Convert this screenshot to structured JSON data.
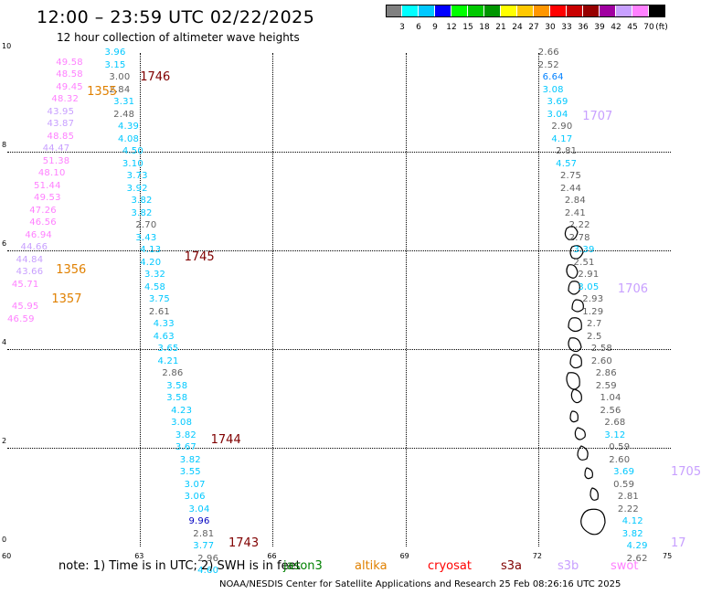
{
  "header": {
    "title": "12:00 – 23:59 UTC 02/22/2025",
    "subtitle": "12 hour collection of altimeter wave heights"
  },
  "colorbar": {
    "unit": "(ft)",
    "colors": [
      "#808080",
      "#00ffff",
      "#00c8ff",
      "#0000ff",
      "#00ff00",
      "#00c800",
      "#009600",
      "#ffff00",
      "#ffc800",
      "#ff9600",
      "#ff0000",
      "#c80000",
      "#960000",
      "#a000a0",
      "#c8a0ff",
      "#ff80ff",
      "#000000"
    ],
    "labels": [
      "3",
      "6",
      "9",
      "12",
      "15",
      "18",
      "21",
      "24",
      "27",
      "30",
      "33",
      "36",
      "39",
      "42",
      "45",
      "70"
    ]
  },
  "axes": {
    "x_ticks": [
      "60",
      "63",
      "66",
      "69",
      "72",
      "75"
    ],
    "y_ticks": [
      "0",
      "2",
      "4",
      "6",
      "8",
      "10"
    ]
  },
  "chart_data": {
    "type": "scatter",
    "xlim": [
      60,
      75
    ],
    "ylim": [
      0,
      10
    ],
    "grid": true,
    "passes": [
      {
        "label": "1746",
        "color": "#800000",
        "x": 63.0,
        "y": 9.5
      },
      {
        "label": "1355",
        "color": "#e08000",
        "x": 61.8,
        "y": 9.2
      },
      {
        "label": "1745",
        "color": "#800000",
        "x": 64.0,
        "y": 5.85
      },
      {
        "label": "1356",
        "color": "#e08000",
        "x": 61.1,
        "y": 5.6
      },
      {
        "label": "1357",
        "color": "#e08000",
        "x": 61.0,
        "y": 5.0
      },
      {
        "label": "1744",
        "color": "#800000",
        "x": 64.6,
        "y": 2.15
      },
      {
        "label": "1743",
        "color": "#800000",
        "x": 65.0,
        "y": 0.05
      },
      {
        "label": "1707",
        "color": "#c8a0ff",
        "x": 73.0,
        "y": 8.7
      },
      {
        "label": "1706",
        "color": "#c8a0ff",
        "x": 73.8,
        "y": 5.2
      },
      {
        "label": "1705",
        "color": "#c8a0ff",
        "x": 75.0,
        "y": 1.5
      },
      {
        "label": "17",
        "color": "#c8a0ff",
        "x": 75.0,
        "y": 0.05
      }
    ],
    "points": [
      {
        "v": "49.58",
        "c": "#ff80ff",
        "x": 61.1,
        "y": 9.8
      },
      {
        "v": "48.58",
        "c": "#ff80ff",
        "x": 61.1,
        "y": 9.55
      },
      {
        "v": "49.45",
        "c": "#ff80ff",
        "x": 61.1,
        "y": 9.3
      },
      {
        "v": "48.32",
        "c": "#ff80ff",
        "x": 61.0,
        "y": 9.05
      },
      {
        "v": "43.95",
        "c": "#c8a0ff",
        "x": 60.9,
        "y": 8.8
      },
      {
        "v": "43.87",
        "c": "#c8a0ff",
        "x": 60.9,
        "y": 8.55
      },
      {
        "v": "48.85",
        "c": "#ff80ff",
        "x": 60.9,
        "y": 8.3
      },
      {
        "v": "44.47",
        "c": "#c8a0ff",
        "x": 60.8,
        "y": 8.05
      },
      {
        "v": "51.38",
        "c": "#ff80ff",
        "x": 60.8,
        "y": 7.8
      },
      {
        "v": "48.10",
        "c": "#ff80ff",
        "x": 60.7,
        "y": 7.55
      },
      {
        "v": "51.44",
        "c": "#ff80ff",
        "x": 60.6,
        "y": 7.3
      },
      {
        "v": "49.53",
        "c": "#ff80ff",
        "x": 60.6,
        "y": 7.05
      },
      {
        "v": "47.26",
        "c": "#ff80ff",
        "x": 60.5,
        "y": 6.8
      },
      {
        "v": "46.56",
        "c": "#ff80ff",
        "x": 60.5,
        "y": 6.55
      },
      {
        "v": "46.94",
        "c": "#ff80ff",
        "x": 60.4,
        "y": 6.3
      },
      {
        "v": "44.66",
        "c": "#c8a0ff",
        "x": 60.3,
        "y": 6.05
      },
      {
        "v": "44.84",
        "c": "#c8a0ff",
        "x": 60.2,
        "y": 5.8
      },
      {
        "v": "43.66",
        "c": "#c8a0ff",
        "x": 60.2,
        "y": 5.55
      },
      {
        "v": "45.71",
        "c": "#ff80ff",
        "x": 60.1,
        "y": 5.3
      },
      {
        "v": "45.95",
        "c": "#ff80ff",
        "x": 60.1,
        "y": 4.85
      },
      {
        "v": "46.59",
        "c": "#ff80ff",
        "x": 60.0,
        "y": 4.6
      },
      {
        "v": "3.96",
        "c": "#00c8ff",
        "x": 62.2,
        "y": 10.0
      },
      {
        "v": "3.15",
        "c": "#00c8ff",
        "x": 62.2,
        "y": 9.75
      },
      {
        "v": "3.00",
        "c": "#606060",
        "x": 62.3,
        "y": 9.5
      },
      {
        "v": "2.84",
        "c": "#606060",
        "x": 62.3,
        "y": 9.25
      },
      {
        "v": "3.31",
        "c": "#00c8ff",
        "x": 62.4,
        "y": 9.0
      },
      {
        "v": "2.48",
        "c": "#606060",
        "x": 62.4,
        "y": 8.75
      },
      {
        "v": "4.39",
        "c": "#00c8ff",
        "x": 62.5,
        "y": 8.5
      },
      {
        "v": "4.08",
        "c": "#00c8ff",
        "x": 62.5,
        "y": 8.25
      },
      {
        "v": "4.50",
        "c": "#00c8ff",
        "x": 62.6,
        "y": 8.0
      },
      {
        "v": "3.10",
        "c": "#00c8ff",
        "x": 62.6,
        "y": 7.75
      },
      {
        "v": "3.73",
        "c": "#00c8ff",
        "x": 62.7,
        "y": 7.5
      },
      {
        "v": "3.92",
        "c": "#00c8ff",
        "x": 62.7,
        "y": 7.25
      },
      {
        "v": "3.82",
        "c": "#00c8ff",
        "x": 62.8,
        "y": 7.0
      },
      {
        "v": "3.82",
        "c": "#00c8ff",
        "x": 62.8,
        "y": 6.75
      },
      {
        "v": "2.70",
        "c": "#606060",
        "x": 62.9,
        "y": 6.5
      },
      {
        "v": "3.43",
        "c": "#00c8ff",
        "x": 62.9,
        "y": 6.25
      },
      {
        "v": "4.13",
        "c": "#00c8ff",
        "x": 63.0,
        "y": 6.0
      },
      {
        "v": "4.20",
        "c": "#00c8ff",
        "x": 63.0,
        "y": 5.75
      },
      {
        "v": "3.32",
        "c": "#00c8ff",
        "x": 63.1,
        "y": 5.5
      },
      {
        "v": "4.58",
        "c": "#00c8ff",
        "x": 63.1,
        "y": 5.25
      },
      {
        "v": "3.75",
        "c": "#00c8ff",
        "x": 63.2,
        "y": 5.0
      },
      {
        "v": "2.61",
        "c": "#606060",
        "x": 63.2,
        "y": 4.75
      },
      {
        "v": "4.33",
        "c": "#00c8ff",
        "x": 63.3,
        "y": 4.5
      },
      {
        "v": "4.63",
        "c": "#00c8ff",
        "x": 63.3,
        "y": 4.25
      },
      {
        "v": "3.65",
        "c": "#00c8ff",
        "x": 63.4,
        "y": 4.0
      },
      {
        "v": "4.21",
        "c": "#00c8ff",
        "x": 63.4,
        "y": 3.75
      },
      {
        "v": "2.86",
        "c": "#606060",
        "x": 63.5,
        "y": 3.5
      },
      {
        "v": "3.58",
        "c": "#00c8ff",
        "x": 63.6,
        "y": 3.25
      },
      {
        "v": "3.58",
        "c": "#00c8ff",
        "x": 63.6,
        "y": 3.0
      },
      {
        "v": "4.23",
        "c": "#00c8ff",
        "x": 63.7,
        "y": 2.75
      },
      {
        "v": "3.08",
        "c": "#00c8ff",
        "x": 63.7,
        "y": 2.5
      },
      {
        "v": "3.82",
        "c": "#00c8ff",
        "x": 63.8,
        "y": 2.25
      },
      {
        "v": "3.67",
        "c": "#00c8ff",
        "x": 63.8,
        "y": 2.0
      },
      {
        "v": "3.82",
        "c": "#00c8ff",
        "x": 63.9,
        "y": 1.75
      },
      {
        "v": "3.55",
        "c": "#00c8ff",
        "x": 63.9,
        "y": 1.5
      },
      {
        "v": "3.07",
        "c": "#00c8ff",
        "x": 64.0,
        "y": 1.25
      },
      {
        "v": "3.06",
        "c": "#00c8ff",
        "x": 64.0,
        "y": 1.0
      },
      {
        "v": "3.04",
        "c": "#00c8ff",
        "x": 64.1,
        "y": 0.75
      },
      {
        "v": "9.96",
        "c": "#0000c0",
        "x": 64.1,
        "y": 0.5
      },
      {
        "v": "2.81",
        "c": "#606060",
        "x": 64.2,
        "y": 0.25
      },
      {
        "v": "3.77",
        "c": "#00c8ff",
        "x": 64.2,
        "y": 0.0
      },
      {
        "v": "2.96",
        "c": "#606060",
        "x": 64.3,
        "y": -0.25
      },
      {
        "v": "4.60",
        "c": "#00c8ff",
        "x": 64.3,
        "y": -0.5
      },
      {
        "v": "2.66",
        "c": "#606060",
        "x": 72.0,
        "y": 10.0
      },
      {
        "v": "2.52",
        "c": "#606060",
        "x": 72.0,
        "y": 9.75
      },
      {
        "v": "6.64",
        "c": "#0080ff",
        "x": 72.1,
        "y": 9.5
      },
      {
        "v": "3.08",
        "c": "#00c8ff",
        "x": 72.1,
        "y": 9.25
      },
      {
        "v": "3.69",
        "c": "#00c8ff",
        "x": 72.2,
        "y": 9.0
      },
      {
        "v": "3.04",
        "c": "#00c8ff",
        "x": 72.2,
        "y": 8.75
      },
      {
        "v": "2.90",
        "c": "#606060",
        "x": 72.3,
        "y": 8.5
      },
      {
        "v": "4.17",
        "c": "#00c8ff",
        "x": 72.3,
        "y": 8.25
      },
      {
        "v": "2.81",
        "c": "#606060",
        "x": 72.4,
        "y": 8.0
      },
      {
        "v": "4.57",
        "c": "#00c8ff",
        "x": 72.4,
        "y": 7.75
      },
      {
        "v": "2.75",
        "c": "#606060",
        "x": 72.5,
        "y": 7.5
      },
      {
        "v": "2.44",
        "c": "#606060",
        "x": 72.5,
        "y": 7.25
      },
      {
        "v": "2.84",
        "c": "#606060",
        "x": 72.6,
        "y": 7.0
      },
      {
        "v": "2.41",
        "c": "#606060",
        "x": 72.6,
        "y": 6.75
      },
      {
        "v": "2.22",
        "c": "#606060",
        "x": 72.7,
        "y": 6.5
      },
      {
        "v": "2.78",
        "c": "#606060",
        "x": 72.7,
        "y": 6.25
      },
      {
        "v": "3.39",
        "c": "#00c8ff",
        "x": 72.8,
        "y": 6.0
      },
      {
        "v": "2.51",
        "c": "#606060",
        "x": 72.8,
        "y": 5.75
      },
      {
        "v": "2.91",
        "c": "#606060",
        "x": 72.9,
        "y": 5.5
      },
      {
        "v": "3.05",
        "c": "#00c8ff",
        "x": 72.9,
        "y": 5.25
      },
      {
        "v": "2.93",
        "c": "#606060",
        "x": 73.0,
        "y": 5.0
      },
      {
        "v": "1.29",
        "c": "#606060",
        "x": 73.0,
        "y": 4.75
      },
      {
        "v": "2.7",
        "c": "#606060",
        "x": 73.1,
        "y": 4.5
      },
      {
        "v": "2.5",
        "c": "#606060",
        "x": 73.1,
        "y": 4.25
      },
      {
        "v": "2.58",
        "c": "#606060",
        "x": 73.2,
        "y": 4.0
      },
      {
        "v": "2.60",
        "c": "#606060",
        "x": 73.2,
        "y": 3.75
      },
      {
        "v": "2.86",
        "c": "#606060",
        "x": 73.3,
        "y": 3.5
      },
      {
        "v": "2.59",
        "c": "#606060",
        "x": 73.3,
        "y": 3.25
      },
      {
        "v": "1.04",
        "c": "#606060",
        "x": 73.4,
        "y": 3.0
      },
      {
        "v": "2.56",
        "c": "#606060",
        "x": 73.4,
        "y": 2.75
      },
      {
        "v": "2.68",
        "c": "#606060",
        "x": 73.5,
        "y": 2.5
      },
      {
        "v": "3.12",
        "c": "#00c8ff",
        "x": 73.5,
        "y": 2.25
      },
      {
        "v": "0.59",
        "c": "#606060",
        "x": 73.6,
        "y": 2.0
      },
      {
        "v": "2.60",
        "c": "#606060",
        "x": 73.6,
        "y": 1.75
      },
      {
        "v": "3.69",
        "c": "#00c8ff",
        "x": 73.7,
        "y": 1.5
      },
      {
        "v": "0.59",
        "c": "#606060",
        "x": 73.7,
        "y": 1.25
      },
      {
        "v": "2.81",
        "c": "#606060",
        "x": 73.8,
        "y": 1.0
      },
      {
        "v": "2.22",
        "c": "#606060",
        "x": 73.8,
        "y": 0.75
      },
      {
        "v": "4.12",
        "c": "#00c8ff",
        "x": 73.9,
        "y": 0.5
      },
      {
        "v": "3.82",
        "c": "#00c8ff",
        "x": 73.9,
        "y": 0.25
      },
      {
        "v": "4.29",
        "c": "#00c8ff",
        "x": 74.0,
        "y": 0.0
      },
      {
        "v": "2.62",
        "c": "#606060",
        "x": 74.0,
        "y": -0.25
      }
    ]
  },
  "legend": {
    "note": "note:  1) Time is in UTC;  2) SWH is in feet",
    "satellites": [
      {
        "name": "jason3",
        "color": "#008000"
      },
      {
        "name": "altika",
        "color": "#e08000"
      },
      {
        "name": "cryosat",
        "color": "#ff0000"
      },
      {
        "name": "s3a",
        "color": "#800000"
      },
      {
        "name": "s3b",
        "color": "#c8a0ff"
      },
      {
        "name": "swot",
        "color": "#ff80ff"
      }
    ]
  },
  "footer": {
    "credit": "NOAA/NESDIS Center for Satellite Applications and Research     25 Feb 08:26:16 UTC 2025"
  }
}
